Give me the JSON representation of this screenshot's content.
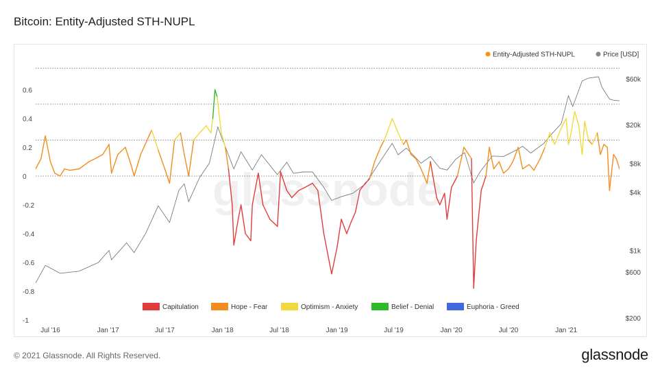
{
  "page": {
    "title": "Bitcoin: Entity-Adjusted STH-NUPL"
  },
  "footer": {
    "copyright": "© 2021 Glassnode. All Rights Reserved.",
    "brand": "glassnode"
  },
  "watermark": "glassnode",
  "chart_data": {
    "type": "line",
    "title": "Bitcoin: Entity-Adjusted STH-NUPL",
    "x_tick_labels": [
      "Jul '16",
      "Jan '17",
      "Jul '17",
      "Jan '18",
      "Jul '18",
      "Jan '19",
      "Jul '19",
      "Jan '20",
      "Jul '20",
      "Jan '21"
    ],
    "x_range": [
      "2016-05-15",
      "2021-06-20"
    ],
    "y_left": {
      "ticks": [
        0.6,
        0.4,
        0.2,
        0,
        -0.2,
        -0.4,
        -0.6,
        -0.8,
        -1
      ],
      "tick_labels": [
        "0.6",
        "0.4",
        "0.2",
        "0",
        "-0.2",
        "-0.4",
        "-0.6",
        "-0.8",
        "-1"
      ],
      "range": [
        -1,
        0.7
      ]
    },
    "y_right": {
      "scale": "log",
      "tick_labels": [
        "$60k",
        "$20k",
        "$8k",
        "$4k",
        "$1k",
        "$600",
        "$200"
      ],
      "ticks": [
        60000,
        20000,
        8000,
        4000,
        1000,
        600,
        200
      ]
    },
    "reference_lines": [
      0.75,
      0.5,
      0.25,
      0
    ],
    "legend_top": [
      {
        "name": "Entity-Adjusted STH-NUPL",
        "color": "#f7931a"
      },
      {
        "name": "Price [USD]",
        "color": "#888888"
      }
    ],
    "zones": [
      {
        "name": "Capitulation",
        "color": "#e03c3c",
        "range": [
          -1,
          0
        ]
      },
      {
        "name": "Hope - Fear",
        "color": "#f28c1e",
        "range": [
          0,
          0.25
        ]
      },
      {
        "name": "Optimism - Anxiety",
        "color": "#f0d93c",
        "range": [
          0.25,
          0.5
        ]
      },
      {
        "name": "Belief - Denial",
        "color": "#2fb928",
        "range": [
          0.5,
          0.75
        ]
      },
      {
        "name": "Euphoria - Greed",
        "color": "#4267e0",
        "range": [
          0.75,
          1
        ]
      }
    ],
    "series": [
      {
        "name": "Entity-Adjusted STH-NUPL",
        "x": [
          "2016-05-15",
          "2016-06-01",
          "2016-06-15",
          "2016-07-01",
          "2016-07-15",
          "2016-08-01",
          "2016-08-15",
          "2016-09-01",
          "2016-10-01",
          "2016-11-01",
          "2016-11-20",
          "2016-12-15",
          "2017-01-04",
          "2017-01-12",
          "2017-02-01",
          "2017-02-25",
          "2017-03-15",
          "2017-03-25",
          "2017-04-15",
          "2017-05-20",
          "2017-06-10",
          "2017-07-01",
          "2017-07-16",
          "2017-08-01",
          "2017-08-20",
          "2017-09-01",
          "2017-09-15",
          "2017-10-01",
          "2017-10-20",
          "2017-11-10",
          "2017-11-25",
          "2017-12-01",
          "2017-12-08",
          "2017-12-15",
          "2017-12-28",
          "2018-01-10",
          "2018-01-20",
          "2018-02-01",
          "2018-02-06",
          "2018-02-20",
          "2018-03-01",
          "2018-03-15",
          "2018-04-01",
          "2018-04-06",
          "2018-04-25",
          "2018-05-10",
          "2018-06-01",
          "2018-06-25",
          "2018-07-05",
          "2018-07-25",
          "2018-08-10",
          "2018-09-01",
          "2018-09-20",
          "2018-10-15",
          "2018-11-01",
          "2018-11-20",
          "2018-12-15",
          "2019-01-01",
          "2019-01-15",
          "2019-02-01",
          "2019-02-15",
          "2019-03-01",
          "2019-03-15",
          "2019-04-01",
          "2019-04-15",
          "2019-05-01",
          "2019-05-20",
          "2019-06-01",
          "2019-06-26",
          "2019-07-15",
          "2019-08-01",
          "2019-08-10",
          "2019-08-25",
          "2019-09-10",
          "2019-09-26",
          "2019-10-15",
          "2019-10-26",
          "2019-11-15",
          "2019-11-25",
          "2019-12-10",
          "2019-12-18",
          "2020-01-01",
          "2020-01-20",
          "2020-02-10",
          "2020-02-25",
          "2020-03-05",
          "2020-03-12",
          "2020-03-20",
          "2020-04-05",
          "2020-04-20",
          "2020-05-01",
          "2020-05-15",
          "2020-06-01",
          "2020-06-15",
          "2020-07-01",
          "2020-07-15",
          "2020-08-01",
          "2020-08-15",
          "2020-09-05",
          "2020-09-20",
          "2020-10-10",
          "2020-10-25",
          "2020-11-10",
          "2020-11-25",
          "2020-12-10",
          "2020-12-20",
          "2021-01-01",
          "2021-01-08",
          "2021-01-15",
          "2021-01-28",
          "2021-02-10",
          "2021-02-21",
          "2021-03-01",
          "2021-03-13",
          "2021-03-25",
          "2021-04-10",
          "2021-04-20",
          "2021-05-01",
          "2021-05-12",
          "2021-05-19",
          "2021-06-01",
          "2021-06-10",
          "2021-06-20"
        ],
        "values": [
          0.05,
          0.12,
          0.28,
          0.1,
          0.02,
          0.0,
          0.05,
          0.04,
          0.05,
          0.1,
          0.12,
          0.15,
          0.22,
          0.02,
          0.15,
          0.2,
          0.08,
          0.0,
          0.15,
          0.32,
          0.18,
          0.05,
          -0.05,
          0.25,
          0.3,
          0.15,
          0.0,
          0.25,
          0.3,
          0.35,
          0.3,
          0.4,
          0.6,
          0.55,
          0.3,
          0.2,
          0.05,
          -0.2,
          -0.48,
          -0.3,
          -0.2,
          -0.4,
          -0.45,
          -0.2,
          0.02,
          -0.2,
          -0.3,
          -0.35,
          0.03,
          -0.1,
          -0.15,
          -0.1,
          -0.08,
          -0.05,
          -0.1,
          -0.4,
          -0.68,
          -0.5,
          -0.3,
          -0.4,
          -0.32,
          -0.25,
          -0.1,
          -0.05,
          -0.02,
          0.1,
          0.2,
          0.25,
          0.4,
          0.3,
          0.22,
          0.25,
          0.15,
          0.12,
          0.05,
          -0.05,
          0.1,
          -0.15,
          -0.2,
          -0.12,
          -0.3,
          -0.08,
          0.0,
          0.2,
          0.15,
          0.12,
          -0.78,
          -0.45,
          -0.1,
          0.0,
          0.2,
          0.05,
          0.1,
          0.02,
          0.05,
          0.1,
          0.2,
          0.05,
          0.08,
          0.04,
          0.12,
          0.2,
          0.3,
          0.22,
          0.3,
          0.35,
          0.4,
          0.22,
          0.28,
          0.45,
          0.35,
          0.15,
          0.38,
          0.25,
          0.22,
          0.3,
          0.15,
          0.22,
          0.2,
          -0.1,
          0.15,
          0.12,
          0.05
        ]
      },
      {
        "name": "Price [USD]",
        "x": [
          "2016-05-15",
          "2016-06-15",
          "2016-08-01",
          "2016-10-01",
          "2016-12-01",
          "2017-01-04",
          "2017-01-12",
          "2017-03-01",
          "2017-03-25",
          "2017-05-01",
          "2017-06-10",
          "2017-07-16",
          "2017-08-15",
          "2017-09-01",
          "2017-09-15",
          "2017-10-20",
          "2017-11-20",
          "2017-12-17",
          "2018-01-01",
          "2018-02-06",
          "2018-03-01",
          "2018-04-06",
          "2018-05-05",
          "2018-06-25",
          "2018-07-25",
          "2018-08-15",
          "2018-09-15",
          "2018-10-15",
          "2018-11-20",
          "2018-12-15",
          "2019-01-15",
          "2019-02-20",
          "2019-04-02",
          "2019-05-15",
          "2019-06-26",
          "2019-07-15",
          "2019-08-10",
          "2019-09-26",
          "2019-10-26",
          "2019-11-25",
          "2019-12-18",
          "2020-01-15",
          "2020-02-12",
          "2020-03-12",
          "2020-04-01",
          "2020-05-10",
          "2020-06-15",
          "2020-07-27",
          "2020-08-15",
          "2020-09-10",
          "2020-10-21",
          "2020-11-15",
          "2020-12-16",
          "2021-01-08",
          "2021-01-22",
          "2021-02-21",
          "2021-03-13",
          "2021-04-14",
          "2021-04-25",
          "2021-05-19",
          "2021-06-01",
          "2021-06-20"
        ],
        "values": [
          460,
          700,
          580,
          610,
          750,
          1000,
          800,
          1200,
          950,
          1500,
          2900,
          1950,
          4200,
          4900,
          3200,
          5700,
          8000,
          19000,
          14000,
          7000,
          10500,
          6800,
          9800,
          6100,
          8200,
          6300,
          6500,
          6500,
          4500,
          3300,
          3600,
          3900,
          4900,
          8000,
          12900,
          9800,
          11500,
          8000,
          9400,
          7100,
          6800,
          8800,
          10300,
          5000,
          6500,
          9500,
          9400,
          11000,
          12000,
          10200,
          12800,
          16000,
          20500,
          40000,
          31000,
          57000,
          61000,
          63000,
          49000,
          37000,
          36000,
          35500
        ]
      }
    ]
  }
}
